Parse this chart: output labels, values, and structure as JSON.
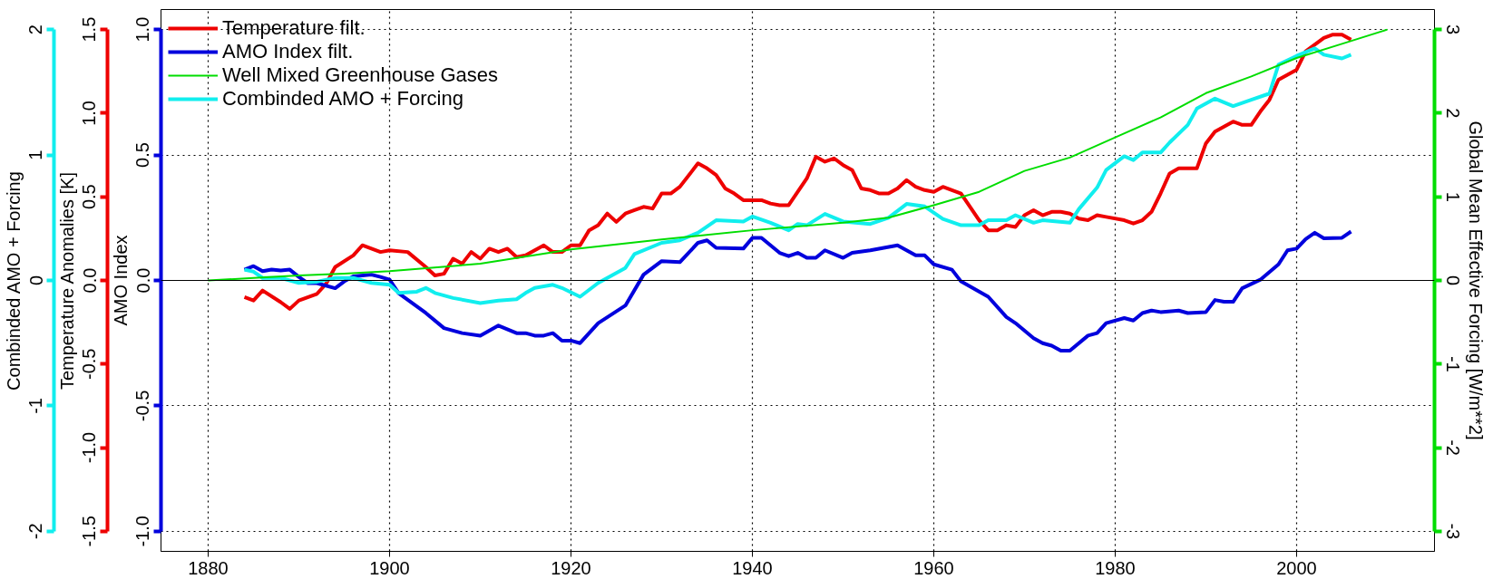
{
  "chart_data": [
    {
      "type": "line",
      "xlim": [
        1874.8,
        2015.2
      ],
      "xticks": [
        1880,
        1900,
        1920,
        1940,
        1960,
        1980,
        2000
      ],
      "ylim": [
        -1.08,
        1.08
      ],
      "yticks": [
        {
          "value": -1,
          "label": "-1.0"
        },
        {
          "value": -0.5,
          "label": "-0.5"
        },
        {
          "value": 0,
          "label": "0.0"
        },
        {
          "value": 0.5,
          "label": "0.5"
        },
        {
          "value": 1,
          "label": "1.0"
        }
      ],
      "ylabel": "AMO Index",
      "y2lim": [
        -3.24,
        3.24
      ],
      "y2ticks": [
        -3,
        -2,
        -1,
        0,
        1,
        2,
        3
      ],
      "y2label": "Global Mean Effective Forcing [W/m**2]",
      "y3lim": [
        -1.62,
        1.62
      ],
      "y3ticks": [
        {
          "value": -1.5,
          "label": "-1.5"
        },
        {
          "value": -1,
          "label": "-1.0"
        },
        {
          "value": -0.5,
          "label": "-0.5"
        },
        {
          "value": 0,
          "label": "0.0"
        },
        {
          "value": 0.5,
          "label": "0.5"
        },
        {
          "value": 1,
          "label": "1.0"
        },
        {
          "value": 1.5,
          "label": "1.5"
        }
      ],
      "y3label": "Temperature Anomalies [K]",
      "grid": true,
      "legend": "top left",
      "line_style": "solid",
      "ref_lines": [
        {
          "axis": "y",
          "value": 0,
          "color": "#000000"
        }
      ],
      "series": [
        {
          "name": "Temperature filt.",
          "color": "#ee0000",
          "axis": "y3",
          "x": [
            1884,
            1885,
            1886,
            1888,
            1889,
            1890,
            1892,
            1893,
            1894,
            1896,
            1897,
            1899,
            1900,
            1902,
            1904,
            1905,
            1906,
            1907,
            1908,
            1909,
            1910,
            1911,
            1912,
            1913,
            1914,
            1915,
            1917,
            1918,
            1919,
            1920,
            1921,
            1922,
            1923,
            1924,
            1925,
            1926,
            1927,
            1928,
            1929,
            1930,
            1931,
            1932,
            1934,
            1935,
            1936,
            1937,
            1938,
            1939,
            1940,
            1941,
            1942,
            1943,
            1944,
            1946,
            1947,
            1948,
            1949,
            1950,
            1951,
            1952,
            1953,
            1954,
            1955,
            1956,
            1957,
            1958,
            1959,
            1960,
            1961,
            1962,
            1963,
            1964,
            1965,
            1966,
            1967,
            1968,
            1969,
            1970,
            1971,
            1972,
            1973,
            1974,
            1975,
            1976,
            1977,
            1978,
            1979,
            1981,
            1982,
            1983,
            1984,
            1985,
            1986,
            1987,
            1989,
            1990,
            1991,
            1993,
            1994,
            1995,
            1996,
            1997,
            1998,
            2000,
            2001,
            2003,
            2004,
            2005,
            2006
          ],
          "values": [
            -0.1,
            -0.12,
            -0.06,
            -0.13,
            -0.17,
            -0.12,
            -0.08,
            -0.02,
            0.08,
            0.15,
            0.21,
            0.17,
            0.18,
            0.17,
            0.08,
            0.03,
            0.04,
            0.13,
            0.1,
            0.17,
            0.13,
            0.19,
            0.17,
            0.19,
            0.14,
            0.15,
            0.21,
            0.17,
            0.17,
            0.21,
            0.21,
            0.3,
            0.33,
            0.4,
            0.35,
            0.4,
            0.42,
            0.44,
            0.43,
            0.52,
            0.52,
            0.56,
            0.7,
            0.67,
            0.63,
            0.55,
            0.52,
            0.48,
            0.48,
            0.48,
            0.46,
            0.45,
            0.45,
            0.61,
            0.74,
            0.71,
            0.73,
            0.69,
            0.66,
            0.55,
            0.54,
            0.52,
            0.52,
            0.55,
            0.6,
            0.56,
            0.54,
            0.53,
            0.56,
            0.54,
            0.52,
            0.44,
            0.36,
            0.3,
            0.3,
            0.33,
            0.32,
            0.39,
            0.42,
            0.39,
            0.41,
            0.41,
            0.4,
            0.37,
            0.36,
            0.39,
            0.38,
            0.36,
            0.34,
            0.36,
            0.41,
            0.52,
            0.64,
            0.67,
            0.67,
            0.82,
            0.89,
            0.95,
            0.93,
            0.93,
            1.01,
            1.08,
            1.2,
            1.26,
            1.37,
            1.45,
            1.47,
            1.47,
            1.44
          ]
        },
        {
          "name": "AMO Index filt.",
          "color": "#0000dd",
          "x": [
            1884,
            1885,
            1886,
            1887,
            1888,
            1889,
            1890,
            1891,
            1892,
            1894,
            1895,
            1896,
            1898,
            1899,
            1900,
            1901,
            1904,
            1906,
            1908,
            1910,
            1912,
            1914,
            1915,
            1916,
            1917,
            1918,
            1919,
            1920,
            1921,
            1923,
            1926,
            1928,
            1930,
            1932,
            1934,
            1935,
            1936,
            1939,
            1940,
            1941,
            1943,
            1944,
            1945,
            1946,
            1947,
            1948,
            1950,
            1951,
            1953,
            1956,
            1958,
            1959,
            1960,
            1962,
            1963,
            1966,
            1968,
            1969,
            1971,
            1972,
            1973,
            1974,
            1975,
            1977,
            1978,
            1979,
            1981,
            1982,
            1983,
            1984,
            1985,
            1987,
            1988,
            1990,
            1991,
            1992,
            1993,
            1994,
            1996,
            1998,
            1999,
            2000,
            2001,
            2002,
            2003,
            2005,
            2006
          ],
          "values": [
            0.043,
            0.057,
            0.037,
            0.043,
            0.04,
            0.043,
            0.014,
            -0.011,
            -0.011,
            -0.031,
            -0.004,
            0.016,
            0.023,
            0.014,
            0.003,
            -0.051,
            -0.13,
            -0.19,
            -0.21,
            -0.22,
            -0.18,
            -0.21,
            -0.21,
            -0.22,
            -0.22,
            -0.21,
            -0.24,
            -0.24,
            -0.25,
            -0.17,
            -0.1,
            0.023,
            0.077,
            0.073,
            0.15,
            0.16,
            0.13,
            0.127,
            0.17,
            0.17,
            0.11,
            0.097,
            0.11,
            0.09,
            0.09,
            0.12,
            0.09,
            0.11,
            0.12,
            0.14,
            0.1,
            0.1,
            0.064,
            0.043,
            -0.004,
            -0.065,
            -0.146,
            -0.17,
            -0.23,
            -0.25,
            -0.26,
            -0.28,
            -0.28,
            -0.22,
            -0.21,
            -0.17,
            -0.15,
            -0.16,
            -0.13,
            -0.12,
            -0.126,
            -0.12,
            -0.13,
            -0.126,
            -0.078,
            -0.085,
            -0.085,
            -0.031,
            0.003,
            0.064,
            0.12,
            0.127,
            0.165,
            0.19,
            0.168,
            0.17,
            0.195
          ]
        },
        {
          "name": "Well Mixed Greenhouse Gases",
          "color": "#00dd00",
          "axis": "y2",
          "x": [
            1880,
            1885,
            1890,
            1895,
            1900,
            1910,
            1920,
            1930,
            1940,
            1950,
            1955,
            1960,
            1965,
            1970,
            1975,
            1980,
            1985,
            1990,
            1995,
            2000,
            2005,
            2010
          ],
          "values": [
            0,
            0.03,
            0.06,
            0.08,
            0.11,
            0.2,
            0.37,
            0.49,
            0.6,
            0.69,
            0.75,
            0.9,
            1.06,
            1.31,
            1.47,
            1.71,
            1.95,
            2.24,
            2.44,
            2.66,
            2.83,
            3.0
          ]
        }
      ]
    },
    {
      "type": "line",
      "xlim": [
        1874.8,
        2015.2
      ],
      "ylim": [
        -2.16,
        2.16
      ],
      "yticks": [
        -2,
        -1,
        0,
        1,
        2
      ],
      "ylabel": "Combinded AMO + Forcing",
      "tick_labels": "y",
      "line_style": "solid",
      "series": [
        {
          "name": "Combinded AMO + Forcing",
          "color": "#11eeee",
          "x": [
            1884,
            1885,
            1886,
            1888,
            1890,
            1892,
            1894,
            1896,
            1898,
            1900,
            1901,
            1903,
            1904,
            1905,
            1907,
            1910,
            1912,
            1914,
            1915,
            1916,
            1918,
            1919,
            1921,
            1923,
            1926,
            1927,
            1930,
            1932,
            1934,
            1936,
            1939,
            1940,
            1942,
            1944,
            1945,
            1946,
            1948,
            1950,
            1953,
            1955,
            1957,
            1959,
            1961,
            1963,
            1965,
            1966,
            1968,
            1969,
            1971,
            1972,
            1975,
            1976,
            1978,
            1979,
            1981,
            1982,
            1983,
            1985,
            1986,
            1988,
            1989,
            1991,
            1993,
            1995,
            1997,
            1998,
            2000,
            2002,
            2003,
            2005,
            2006
          ],
          "values": [
            0.086,
            0.07,
            0.02,
            0.02,
            -0.02,
            -0.01,
            0.02,
            0.02,
            -0.02,
            -0.035,
            -0.1,
            -0.09,
            -0.06,
            -0.1,
            -0.14,
            -0.18,
            -0.16,
            -0.15,
            -0.1,
            -0.06,
            -0.035,
            -0.06,
            -0.13,
            -0.02,
            0.1,
            0.21,
            0.3,
            0.32,
            0.38,
            0.48,
            0.47,
            0.51,
            0.46,
            0.4,
            0.45,
            0.44,
            0.53,
            0.47,
            0.45,
            0.5,
            0.61,
            0.59,
            0.49,
            0.44,
            0.44,
            0.48,
            0.48,
            0.52,
            0.46,
            0.48,
            0.46,
            0.57,
            0.74,
            0.88,
            0.99,
            0.96,
            1.02,
            1.02,
            1.1,
            1.24,
            1.37,
            1.45,
            1.39,
            1.44,
            1.49,
            1.72,
            1.79,
            1.85,
            1.8,
            1.77,
            1.8
          ]
        }
      ]
    }
  ]
}
